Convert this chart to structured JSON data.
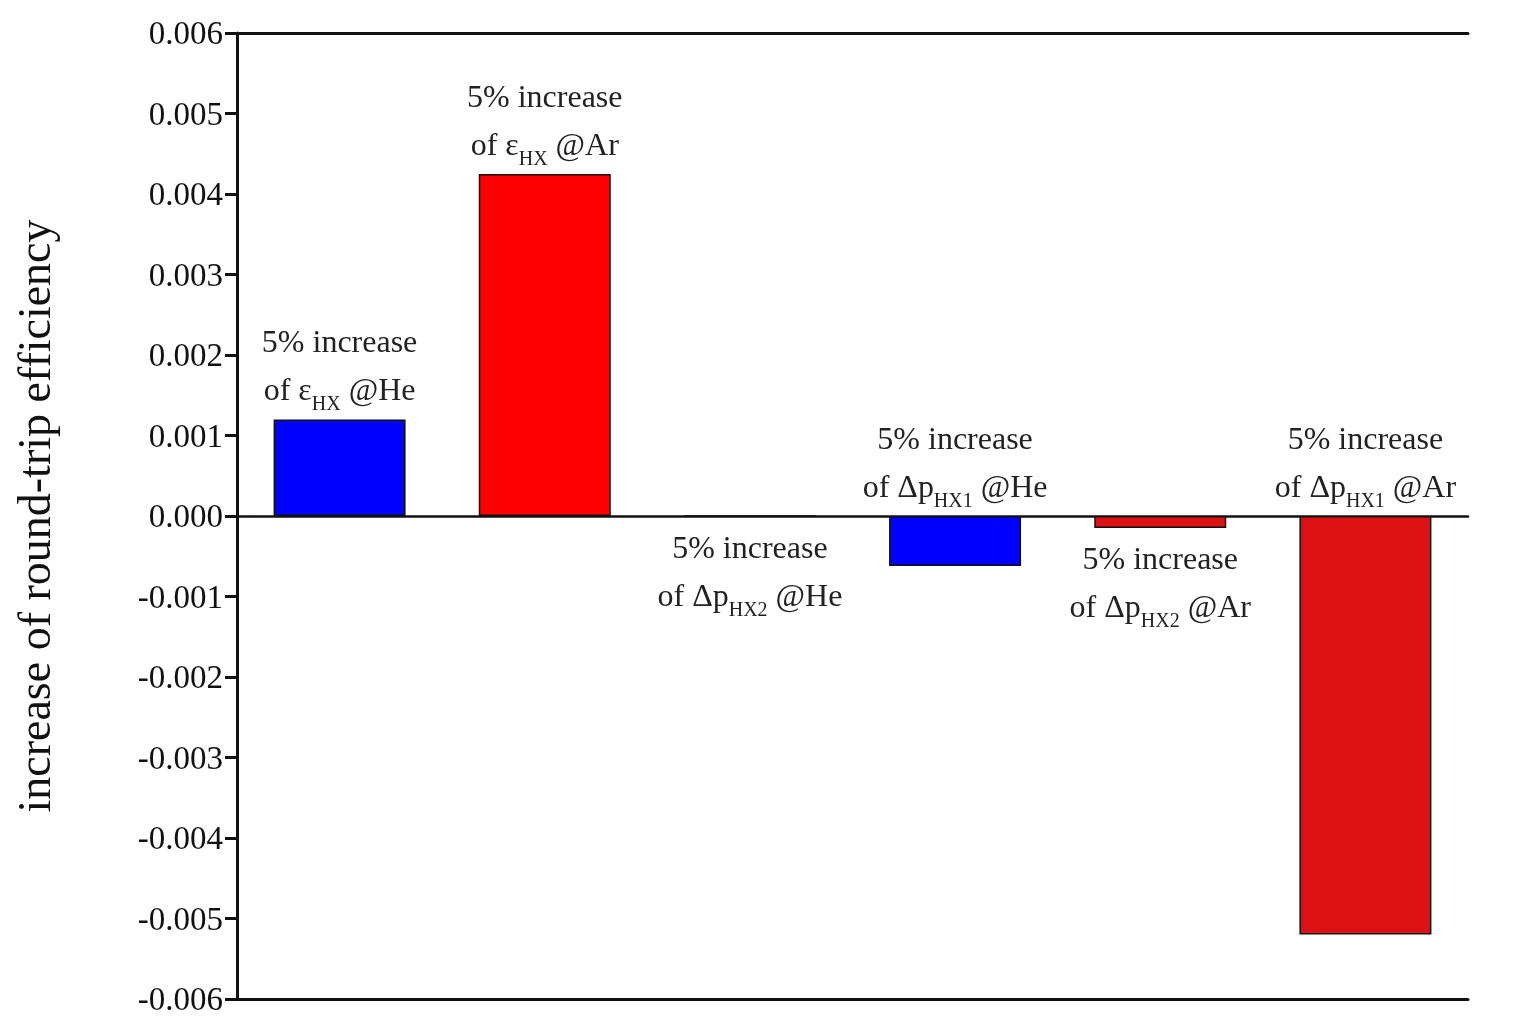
{
  "chart_data": {
    "type": "bar",
    "ylabel": "increase of round-trip efficiency",
    "categories": [
      "5% increase\nof ε$_{HX}$ @He",
      "5% increase\nof ε$_{HX}$ @Ar",
      "5% increase\nof Δp$_{HX2}$ @He",
      "5% increase\nof Δp$_{HX1}$ @He",
      "5% increase\nof Δp$_{HX2}$ @Ar",
      "5% increase\nof Δp$_{HX1}$ @Ar"
    ],
    "values": [
      0.0012,
      0.00425,
      0,
      -0.00062,
      -0.00015,
      -0.0052
    ],
    "colors": [
      "#0000ff",
      "#ff0000",
      "#111111",
      "#0000ff",
      "#dd1111",
      "#dd1111"
    ],
    "ylim": [
      -0.006,
      0.006
    ],
    "yticks": [
      -0.006,
      -0.005,
      -0.004,
      -0.003,
      -0.002,
      -0.001,
      {
        "value": 0,
        "label": "0.000"
      },
      0.001,
      0.002,
      0.003,
      0.004,
      0.005,
      0.006
    ],
    "grid": false
  }
}
